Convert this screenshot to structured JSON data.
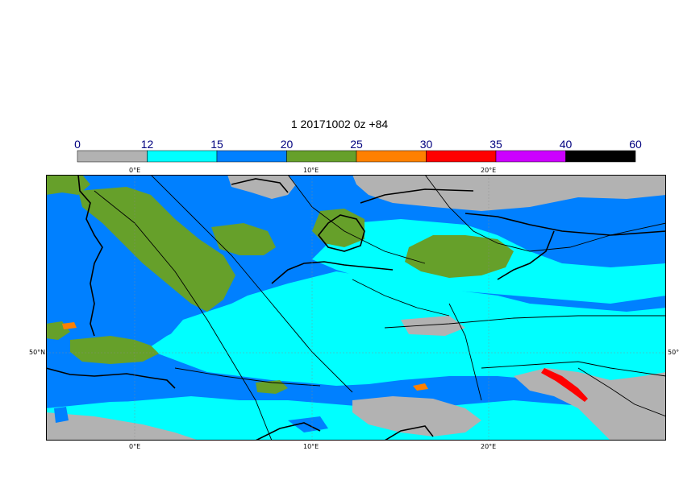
{
  "title": "1 20171002 0z +84",
  "legend": {
    "ticks": [
      "0",
      "12",
      "15",
      "20",
      "25",
      "30",
      "35",
      "40",
      "60"
    ],
    "colors": [
      "#b2b2b2",
      "#00ffff",
      "#0080ff",
      "#66a02a",
      "#ff8000",
      "#ff0000",
      "#cc00ff",
      "#000000"
    ]
  },
  "axes": {
    "lon_labels": [
      "0°E",
      "10°E",
      "20°E"
    ],
    "lat_labels": [
      "50°N",
      "50°N"
    ]
  },
  "colors": {
    "sea": "#0080ff",
    "land_gray": "#b2b2b2",
    "cyan": "#00ffff",
    "green": "#66a02a",
    "border": "#000000"
  }
}
